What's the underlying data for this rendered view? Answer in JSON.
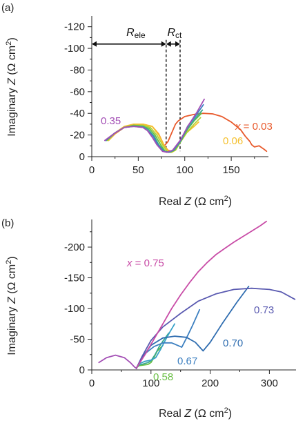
{
  "chart_data": [
    {
      "panel": "(a)",
      "type": "line",
      "xlabel": "Real Z (Ω cm²)",
      "ylabel": "Imaginary Z (Ω cm²)",
      "xlim": [
        0,
        190
      ],
      "ylim": [
        0,
        -130
      ],
      "xticks": [
        "0",
        "50",
        "100",
        "150"
      ],
      "xtick_values": [
        0,
        50,
        100,
        150
      ],
      "yticks": [
        "0",
        "-20",
        "-40",
        "-60",
        "-80",
        "-100",
        "-120"
      ],
      "ytick_values": [
        0,
        -20,
        -40,
        -60,
        -80,
        -100,
        -120
      ],
      "annotations": {
        "r_ele": {
          "main": "R",
          "sub": "ele",
          "from": 0,
          "to": 80,
          "y": -104
        },
        "r_ct": {
          "main": "R",
          "sub": "ct",
          "from": 80,
          "to": 95,
          "y": -104
        },
        "dashed_x": [
          80,
          95
        ]
      },
      "series": [
        {
          "label": "x = 0.03",
          "color": "#e8592b",
          "x": [
            78,
            82,
            85,
            88,
            90,
            93,
            100,
            110,
            120,
            130,
            140,
            150,
            160,
            165,
            170,
            172,
            175,
            180,
            185,
            188
          ],
          "y": [
            -10,
            -14,
            -20,
            -26,
            -30,
            -33,
            -37,
            -39,
            -40,
            -39.5,
            -37,
            -32,
            -25,
            -19,
            -14,
            -11,
            -9,
            -10,
            -7,
            -5
          ]
        },
        {
          "label": "",
          "color": "#f3962b",
          "x": [
            18,
            25,
            35,
            45,
            55,
            65,
            72,
            78,
            82,
            86,
            90,
            95,
            100,
            105,
            110
          ],
          "y": [
            -15,
            -21,
            -27,
            -29,
            -30,
            -28,
            -21,
            -10,
            -6,
            -5,
            -7,
            -14,
            -21,
            -25,
            -28
          ]
        },
        {
          "label": "0.06",
          "color": "#f5c02e",
          "x": [
            18,
            25,
            35,
            45,
            55,
            65,
            72,
            78,
            82,
            86,
            90,
            95,
            102,
            110,
            115
          ],
          "y": [
            -15,
            -22,
            -28,
            -30,
            -30,
            -28,
            -20,
            -10,
            -5,
            -4,
            -6,
            -13,
            -22,
            -28,
            -32
          ]
        },
        {
          "label": "",
          "color": "#b4d134",
          "x": [
            17,
            25,
            35,
            45,
            55,
            63,
            70,
            76,
            81,
            85,
            90,
            95,
            102,
            110,
            117
          ],
          "y": [
            -15,
            -22,
            -27,
            -29,
            -29,
            -27,
            -20,
            -11,
            -5,
            -4,
            -6,
            -13,
            -22,
            -30,
            -36
          ]
        },
        {
          "label": "",
          "color": "#6abf45",
          "x": [
            16,
            25,
            35,
            45,
            55,
            62,
            68,
            74,
            79,
            84,
            89,
            95,
            102,
            110,
            118
          ],
          "y": [
            -15,
            -22,
            -27,
            -29,
            -28,
            -26,
            -20,
            -11,
            -5,
            -4,
            -6,
            -13,
            -24,
            -33,
            -40
          ]
        },
        {
          "label": "",
          "color": "#3aa98e",
          "x": [
            15,
            25,
            35,
            45,
            55,
            61,
            67,
            72,
            78,
            83,
            88,
            95,
            103,
            111,
            119
          ],
          "y": [
            -15,
            -22,
            -27,
            -28,
            -28,
            -25,
            -19,
            -11,
            -5,
            -4,
            -6,
            -14,
            -26,
            -35,
            -43
          ]
        },
        {
          "label": "",
          "color": "#3f82c4",
          "x": [
            15,
            25,
            35,
            45,
            55,
            60,
            66,
            71,
            77,
            82,
            88,
            95,
            103,
            112,
            120
          ],
          "y": [
            -15,
            -22,
            -27,
            -28,
            -27,
            -24,
            -19,
            -11,
            -5,
            -4,
            -6,
            -14,
            -28,
            -38,
            -48
          ]
        },
        {
          "label": "0.35",
          "color": "#a34fb5",
          "x": [
            14,
            25,
            35,
            45,
            55,
            60,
            65,
            70,
            76,
            81,
            87,
            95,
            104,
            113,
            121
          ],
          "y": [
            -15,
            -22,
            -27,
            -28,
            -27,
            -24,
            -18,
            -11,
            -5,
            -4,
            -6,
            -15,
            -29,
            -41,
            -53
          ]
        }
      ]
    },
    {
      "panel": "(b)",
      "type": "line",
      "xlabel": "Real Z (Ω cm²)",
      "ylabel": "Imaginary Z (Ω cm²)",
      "xlim": [
        0,
        345
      ],
      "ylim": [
        0,
        -245
      ],
      "xticks": [
        "0",
        "100",
        "200",
        "300"
      ],
      "xtick_values": [
        0,
        100,
        200,
        300
      ],
      "yticks": [
        "0",
        "-50",
        "-100",
        "-150",
        "-200"
      ],
      "ytick_values": [
        0,
        -50,
        -100,
        -150,
        -200
      ],
      "series": [
        {
          "label": "",
          "color": "#a34fb5",
          "x": [
            12,
            25,
            40,
            55,
            65,
            72,
            76
          ],
          "y": [
            -12,
            -20,
            -24,
            -20,
            -12,
            -5,
            -2
          ]
        },
        {
          "label": "0.58",
          "color": "#6abf45",
          "x": [
            76,
            80,
            88,
            95,
            100,
            105,
            110,
            115,
            120
          ],
          "y": [
            -4,
            -7,
            -8,
            -9,
            -12,
            -20,
            -30,
            -35,
            -40
          ]
        },
        {
          "label": "",
          "color": "#3aa98e",
          "x": [
            76,
            80,
            88,
            95,
            100,
            107,
            114,
            121,
            130
          ],
          "y": [
            -4,
            -8,
            -10,
            -12,
            -15,
            -25,
            -38,
            -48,
            -60
          ]
        },
        {
          "label": "",
          "color": "#39a2c9",
          "x": [
            76,
            80,
            90,
            100,
            108,
            116,
            124,
            132,
            140
          ],
          "y": [
            -4,
            -10,
            -14,
            -16,
            -20,
            -33,
            -48,
            -62,
            -75
          ]
        },
        {
          "label": "0.67",
          "color": "#3c7fc0",
          "x": [
            76,
            82,
            92,
            105,
            120,
            135,
            145,
            152,
            160,
            170,
            182
          ],
          "y": [
            -4,
            -15,
            -28,
            -38,
            -44,
            -44,
            -40,
            -37,
            -52,
            -72,
            -98
          ]
        },
        {
          "label": "0.70",
          "color": "#2f6db0",
          "x": [
            76,
            85,
            100,
            120,
            140,
            160,
            175,
            188,
            200,
            220,
            245,
            265
          ],
          "y": [
            -4,
            -20,
            -40,
            -52,
            -55,
            -53,
            -45,
            -31,
            -45,
            -75,
            -110,
            -136
          ]
        },
        {
          "label": "0.73",
          "color": "#5959b0",
          "x": [
            76,
            85,
            100,
            120,
            150,
            180,
            210,
            240,
            270,
            300,
            320,
            343
          ],
          "y": [
            -4,
            -22,
            -48,
            -70,
            -92,
            -112,
            -124,
            -131,
            -133,
            -131,
            -127,
            -115
          ]
        },
        {
          "label": "x = 0.75",
          "color": "#c84ba6",
          "x": [
            76,
            90,
            105,
            120,
            135,
            150,
            165,
            180,
            195,
            210,
            225,
            240,
            255,
            270,
            285,
            295
          ],
          "y": [
            -4,
            -25,
            -50,
            -75,
            -100,
            -122,
            -142,
            -160,
            -175,
            -188,
            -198,
            -208,
            -217,
            -226,
            -235,
            -242
          ]
        }
      ]
    }
  ],
  "panel_a": {
    "label": "(a)",
    "ylabel_pre": "Imaginary ",
    "ylabel_it": "Z",
    "ylabel_post": " (Ω cm",
    "ylabel_sup": "2",
    "ylabel_end": ")",
    "xlabel_pre": "Real ",
    "xlabel_it": "Z",
    "xlabel_post": " (Ω cm",
    "xlabel_sup": "2",
    "xlabel_end": ")",
    "x_prefix": "x",
    "x_eq": " = 0.03"
  },
  "panel_b": {
    "label": "(b)",
    "ylabel_pre": "Imaginary ",
    "ylabel_it": "Z",
    "ylabel_post": " (Ω cm",
    "ylabel_sup": "2",
    "ylabel_end": ")",
    "xlabel_pre": "Real ",
    "xlabel_it": "Z",
    "xlabel_post": " (Ω cm",
    "xlabel_sup": "2",
    "xlabel_end": ")",
    "x_prefix": "x",
    "x_eq": " = 0.75"
  }
}
